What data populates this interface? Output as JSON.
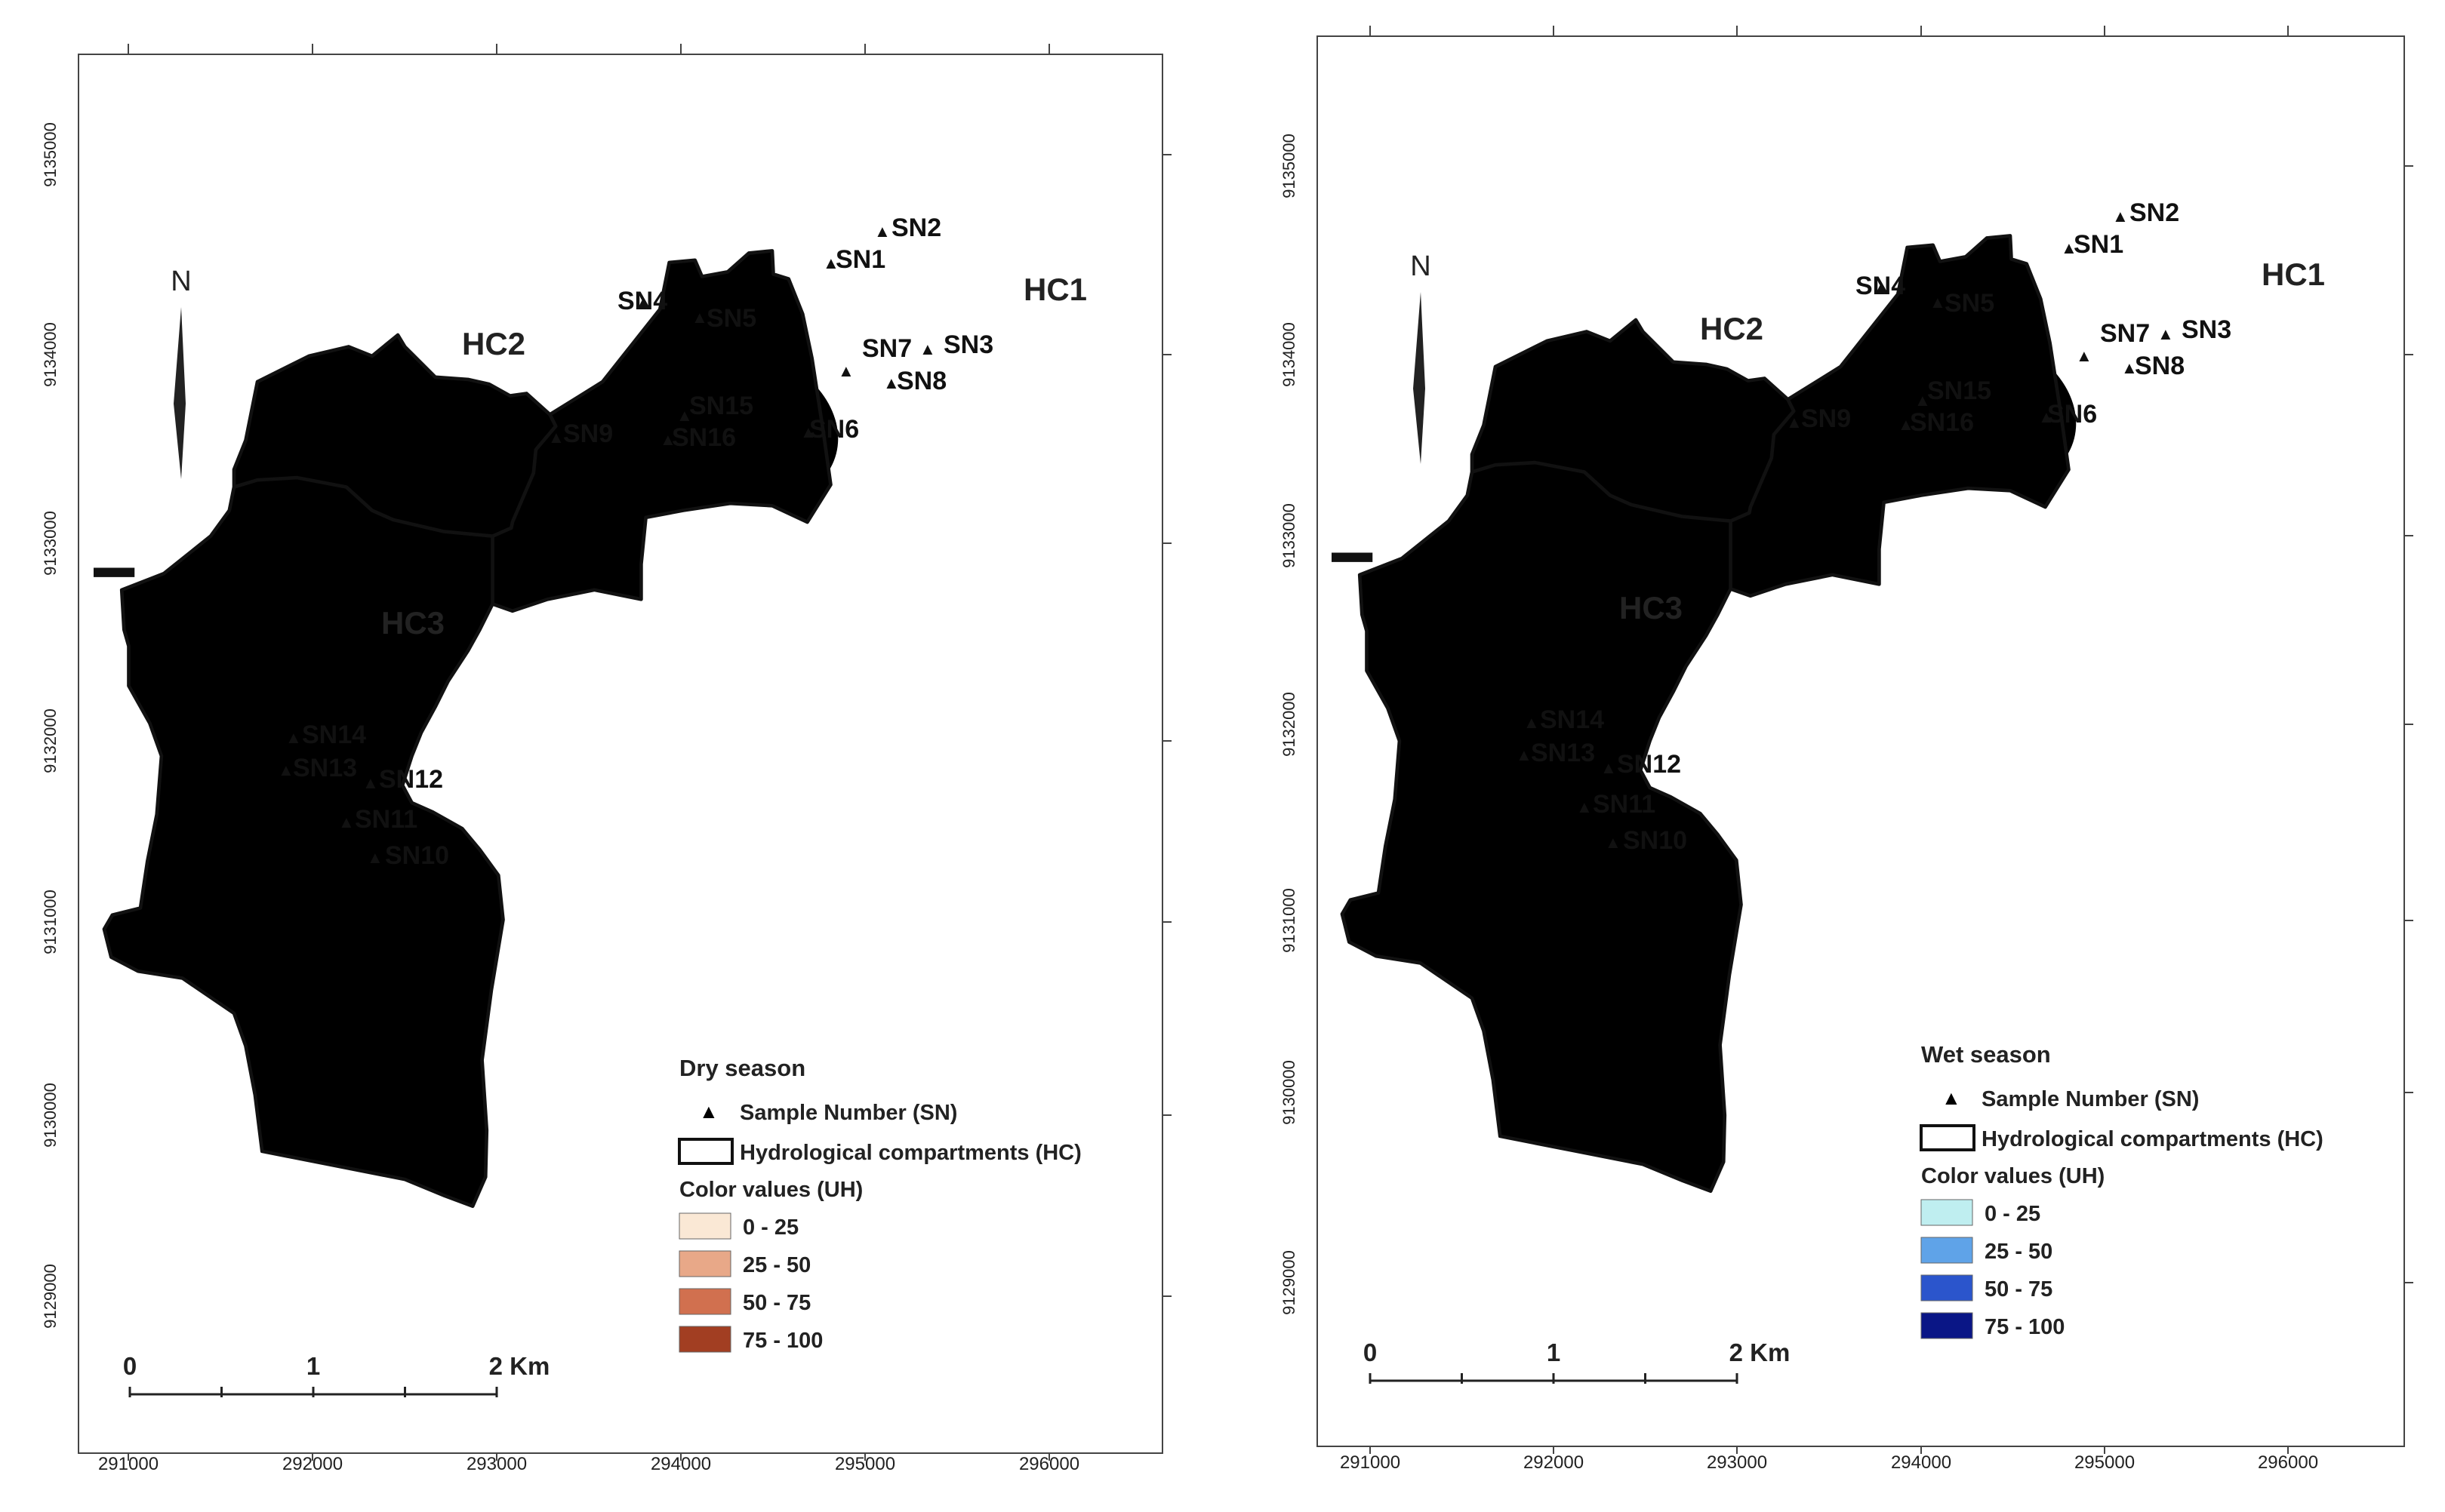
{
  "maps": [
    {
      "id": "dry",
      "legend_title": "Dry season",
      "colors": [
        "#FAE8D5",
        "#E8A888",
        "#D1704F",
        "#A23E22"
      ]
    },
    {
      "id": "wet",
      "legend_title": "Wet season",
      "colors": [
        "#BFEEF0",
        "#5FA3E8",
        "#2B55CC",
        "#0A1686"
      ]
    }
  ],
  "legend": {
    "sample_label": "Sample Number (SN)",
    "compartment_label": "Hydrological compartments (HC)",
    "color_values_title": "Color values (UH)",
    "classes": [
      "0 - 25",
      "25 - 50",
      "50 - 75",
      "75 - 100"
    ]
  },
  "compartments": [
    "HC1",
    "HC2",
    "HC3"
  ],
  "north_label": "N",
  "scale_bar": {
    "labels": [
      "0",
      "1",
      "2 Km"
    ]
  },
  "x_ticks": [
    "291000",
    "292000",
    "293000",
    "294000",
    "295000",
    "296000"
  ],
  "y_ticks": [
    "9135000",
    "9134000",
    "9133000",
    "9132000",
    "9131000",
    "9130000",
    "9129000"
  ],
  "samples": [
    "SN1",
    "SN2",
    "SN3",
    "SN4",
    "SN5",
    "SN6",
    "SN7",
    "SN8",
    "SN9",
    "SN10",
    "SN11",
    "SN12",
    "SN13",
    "SN14",
    "SN15",
    "SN16"
  ],
  "colors": {
    "outline": "#111111",
    "frame": "#444444"
  }
}
